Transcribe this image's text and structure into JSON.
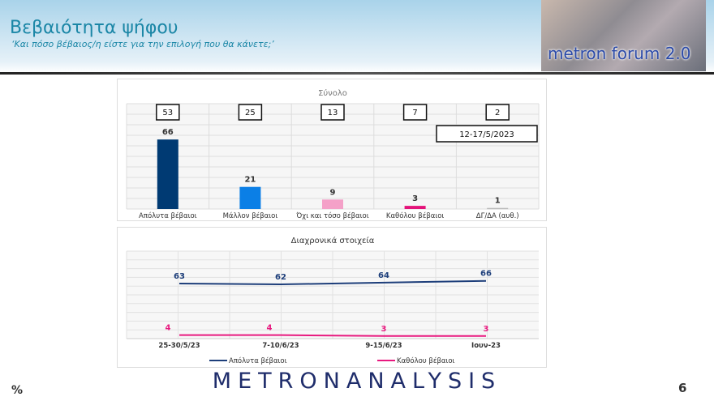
{
  "header": {
    "title": "Βεβαιότητα ψήφου",
    "subtitle": "‘Και πόσο βέβαιος/η είστε για την επιλογή που θα κάνετε;’",
    "logo_text": "metron forum 2.0"
  },
  "footer": {
    "brand": "METRONANALYSIS",
    "unit": "%",
    "page": "6"
  },
  "chart_data": [
    {
      "type": "bar",
      "title": "Σύνολο",
      "date_label": "12-17/5/2023",
      "categories": [
        "Απόλυτα βέβαιοι",
        "Μάλλον βέβαιοι",
        "Όχι και τόσο βέβαιοι",
        "Καθόλου βέβαιοι",
        "ΔΓ/ΔΑ (αυθ.)"
      ],
      "values": [
        66,
        21,
        9,
        3,
        1
      ],
      "boxed_values": [
        53,
        25,
        13,
        7,
        2
      ],
      "colors": [
        "#003a73",
        "#0b7fe6",
        "#f4a1c8",
        "#e4137a",
        "#bbbbbb"
      ],
      "ylim": [
        0,
        100
      ],
      "grid": true
    },
    {
      "type": "line",
      "title": "Διαχρονικά στοιχεία",
      "categories": [
        "25-30/5/23",
        "7-10/6/23",
        "9-15/6/23",
        "Ιουν-23"
      ],
      "series": [
        {
          "name": "Απόλυτα βέβαιοι",
          "values": [
            63,
            62,
            64,
            66
          ],
          "color": "#1d3e7a"
        },
        {
          "name": "Καθόλου βέβαιοι",
          "values": [
            4,
            4,
            3,
            3
          ],
          "color": "#e8197f"
        }
      ],
      "ylim": [
        0,
        100
      ],
      "grid": true,
      "legend": "bottom"
    }
  ]
}
